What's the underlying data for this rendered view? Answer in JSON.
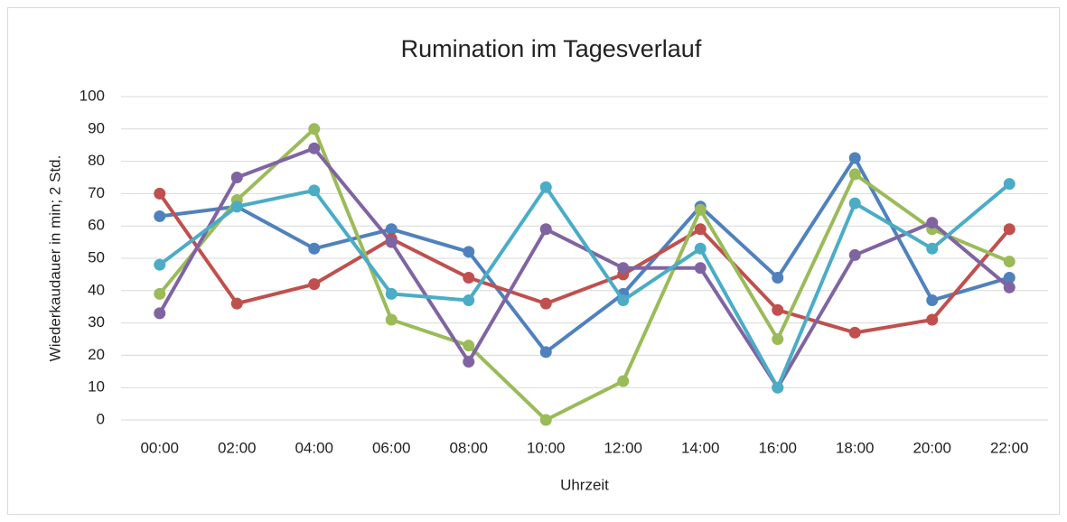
{
  "chart_data": {
    "type": "line",
    "title": "Rumination im Tagesverlauf",
    "x_label": "Uhrzeit",
    "y_label": "Wiederkaudauer in min; 2 Std.",
    "categories": [
      "00:00",
      "02:00",
      "04:00",
      "06:00",
      "08:00",
      "10:00",
      "12:00",
      "14:00",
      "16:00",
      "18:00",
      "20:00",
      "22:00"
    ],
    "series": [
      {
        "color": "#4f81bd",
        "values": [
          63,
          66,
          53,
          59,
          52,
          21,
          39,
          66,
          44,
          81,
          37,
          44
        ]
      },
      {
        "color": "#c0504d",
        "values": [
          70,
          36,
          42,
          56,
          44,
          36,
          45,
          59,
          34,
          27,
          31,
          59
        ]
      },
      {
        "color": "#9bbb59",
        "values": [
          39,
          68,
          90,
          31,
          23,
          0,
          12,
          65,
          25,
          76,
          59,
          49
        ]
      },
      {
        "color": "#8064a2",
        "values": [
          33,
          75,
          84,
          55,
          18,
          59,
          47,
          47,
          10,
          51,
          61,
          41
        ]
      },
      {
        "color": "#4bacc6",
        "values": [
          48,
          66,
          71,
          39,
          37,
          72,
          37,
          53,
          10,
          67,
          53,
          73
        ]
      }
    ],
    "ylim": [
      0,
      100
    ],
    "yticks": [
      0,
      10,
      20,
      30,
      40,
      50,
      60,
      70,
      80,
      90,
      100
    ],
    "grid": true
  }
}
